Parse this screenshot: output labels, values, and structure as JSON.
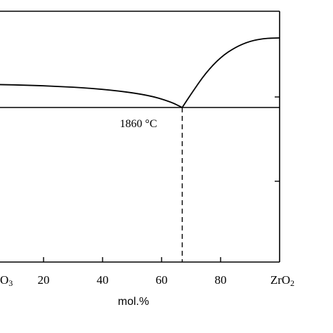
{
  "chart_data": {
    "type": "line",
    "title": "",
    "xlabel": "mol.%",
    "ylabel": "",
    "xlim": [
      0,
      100
    ],
    "x_ticks": [
      {
        "value": 0,
        "label": "O3"
      },
      {
        "value": 20,
        "label": "20"
      },
      {
        "value": 40,
        "label": "40"
      },
      {
        "value": 60,
        "label": "60"
      },
      {
        "value": 80,
        "label": "80"
      },
      {
        "value": 100,
        "label": "ZrO2"
      }
    ],
    "grid": false,
    "legend": "none",
    "series": [
      {
        "points": [
          [
            0,
            1920
          ],
          [
            20,
            1917
          ],
          [
            40,
            1908
          ],
          [
            55,
            1893
          ],
          [
            63,
            1875
          ],
          [
            67,
            1860
          ]
        ]
      },
      {
        "points": [
          [
            67,
            1860
          ],
          [
            70,
            1895
          ],
          [
            75,
            1950
          ],
          [
            80,
            1990
          ],
          [
            85,
            2016
          ],
          [
            90,
            2032
          ],
          [
            95,
            2039
          ],
          [
            100,
            2040
          ]
        ]
      }
    ],
    "eutectic": {
      "x": 67,
      "temperature": 1860,
      "label": "1860 °C"
    },
    "color": "#000000"
  }
}
